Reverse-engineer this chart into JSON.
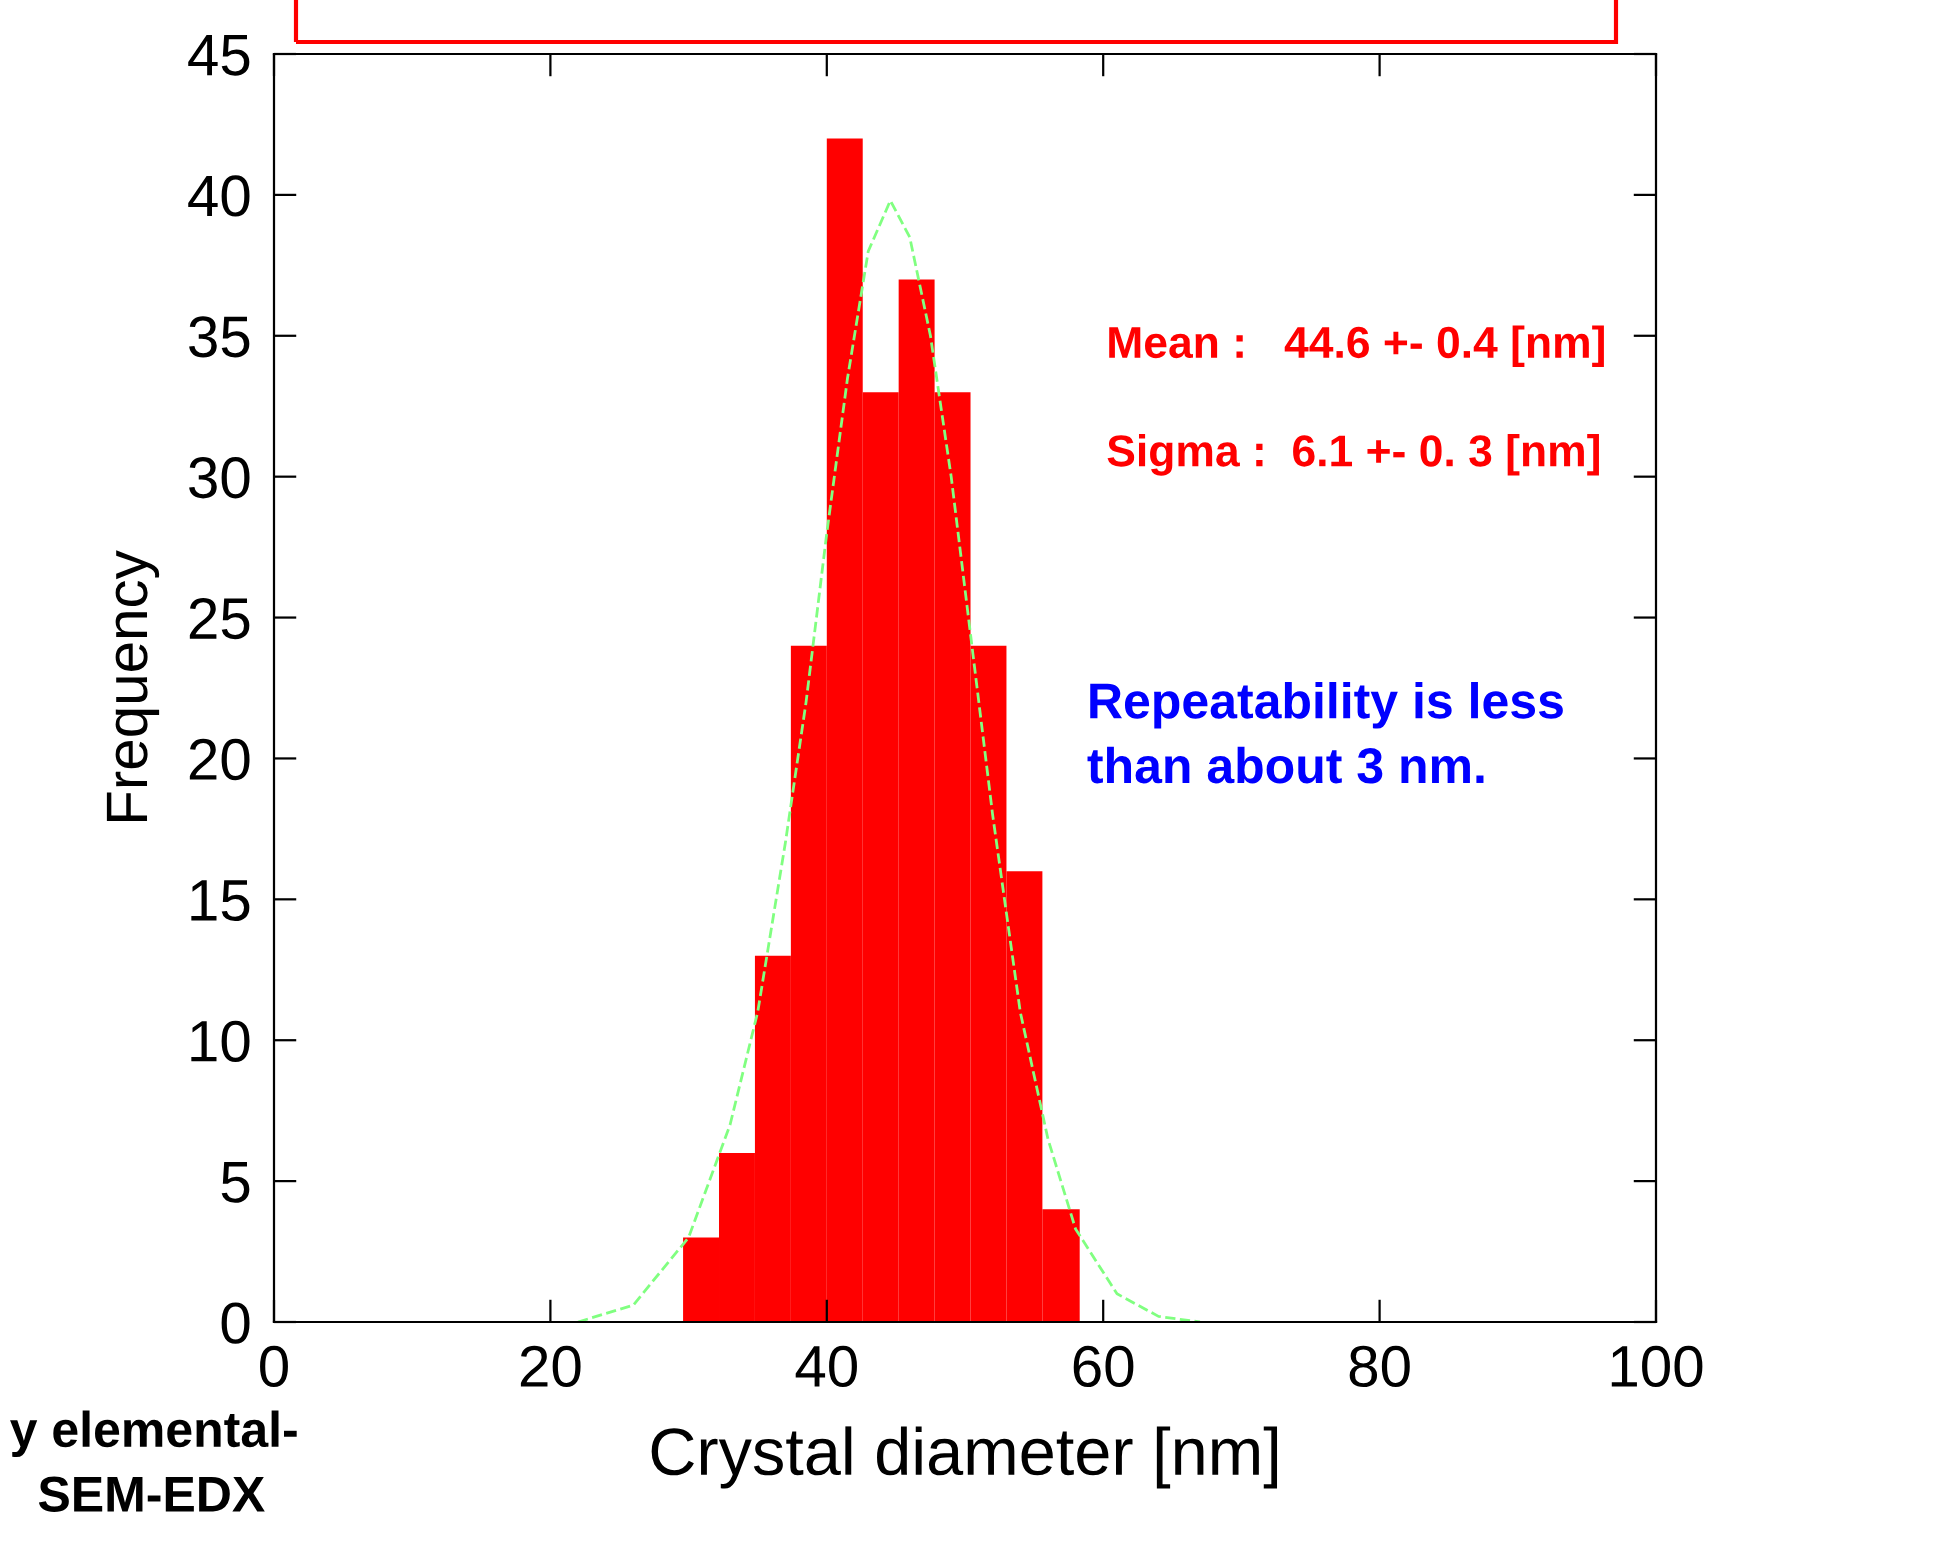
{
  "chart_data": {
    "type": "histogram",
    "xlabel": "Crystal diameter [nm]",
    "ylabel": "Frequency",
    "bins": [
      29.6,
      32.2,
      34.8,
      37.4,
      40.0,
      42.6,
      45.2,
      47.8,
      50.4,
      53.0,
      55.6,
      58.3
    ],
    "values": [
      3,
      6,
      13,
      24,
      42,
      33,
      37,
      33,
      24,
      16,
      4
    ],
    "color": "#ff0000",
    "series": [
      {
        "type": "line",
        "color": "#80ff80",
        "line_style": "dashed",
        "x": [
          22,
          26,
          30,
          33,
          35,
          37,
          38.5,
          40,
          41.5,
          43,
          44.6,
          46,
          47.5,
          49,
          50.5,
          52,
          54,
          56,
          58,
          61,
          64,
          67
        ],
        "values": [
          0,
          0.6,
          3,
          7,
          11,
          17,
          22,
          28,
          33.5,
          38,
          39.8,
          38.5,
          35,
          30,
          24,
          18,
          11,
          6.5,
          3.3,
          1,
          0.2,
          0
        ]
      }
    ],
    "xlim": [
      0,
      100
    ],
    "xticks": [
      0,
      20,
      40,
      60,
      80,
      100
    ],
    "ylim": [
      0,
      45
    ],
    "yticks": [
      0,
      5,
      10,
      15,
      20,
      25,
      30,
      35,
      40,
      45
    ],
    "grid": false,
    "annotations": [
      "Mean :   44.6 +- 0.4 [nm]",
      "Sigma :  6.1 +- 0. 3 [nm]",
      "Repeatability is less\nthan about 3 nm.",
      "y elemental-\n  SEM-EDX"
    ]
  }
}
